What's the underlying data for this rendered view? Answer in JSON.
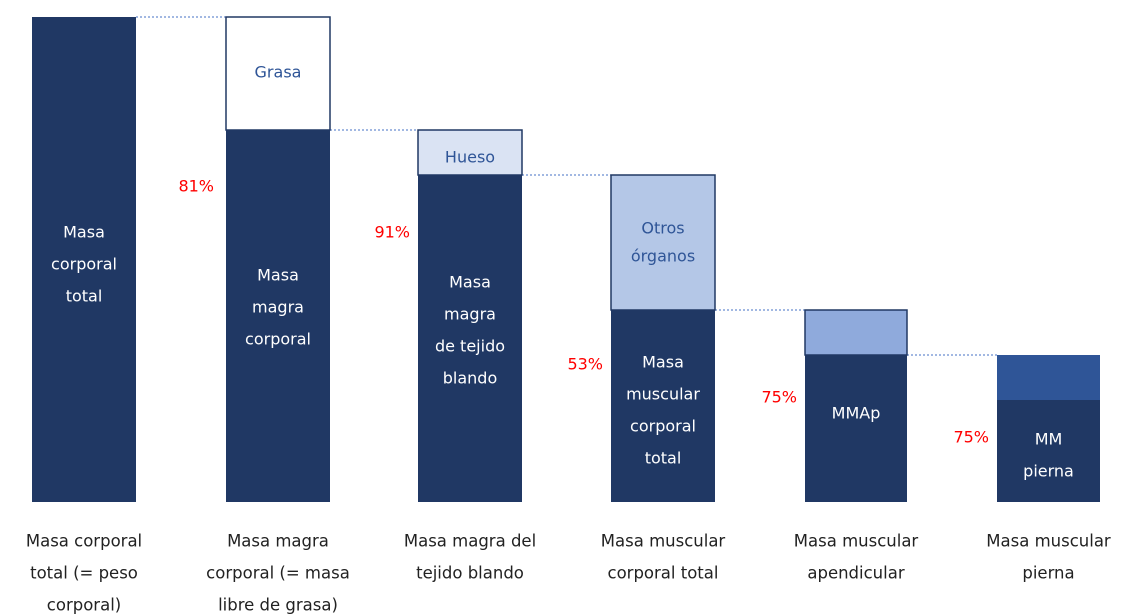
{
  "columns": [
    {
      "label": [
        "Masa corporal",
        "total (= peso",
        "corporal)"
      ],
      "segments": [
        {
          "text": [
            "Masa",
            "corporal",
            "total"
          ]
        }
      ]
    },
    {
      "label": [
        "Masa magra",
        "corporal (= masa",
        "libre de grasa)"
      ],
      "percent": "81%",
      "segments": [
        {
          "text": [
            "Grasa"
          ]
        },
        {
          "text": [
            "Masa",
            "magra",
            "corporal"
          ]
        }
      ]
    },
    {
      "label": [
        "Masa magra del",
        "tejido blando"
      ],
      "percent": "91%",
      "segments": [
        {
          "text": [
            "Hueso"
          ]
        },
        {
          "text": [
            "Masa",
            "magra",
            "de tejido",
            "blando"
          ]
        }
      ]
    },
    {
      "label": [
        "Masa muscular",
        "corporal total"
      ],
      "percent": "53%",
      "segments": [
        {
          "text": [
            "Otros",
            "órganos"
          ]
        },
        {
          "text": [
            "Masa",
            "muscular",
            "corporal",
            "total"
          ]
        }
      ]
    },
    {
      "label": [
        "Masa muscular",
        "apendicular"
      ],
      "percent": "75%",
      "segments": [
        {},
        {
          "text": [
            "MMAp"
          ]
        }
      ]
    },
    {
      "label": [
        "Masa muscular",
        "pierna"
      ],
      "percent": "75%",
      "segments": [
        {},
        {
          "text": [
            "MM",
            "pierna"
          ]
        }
      ]
    }
  ]
}
